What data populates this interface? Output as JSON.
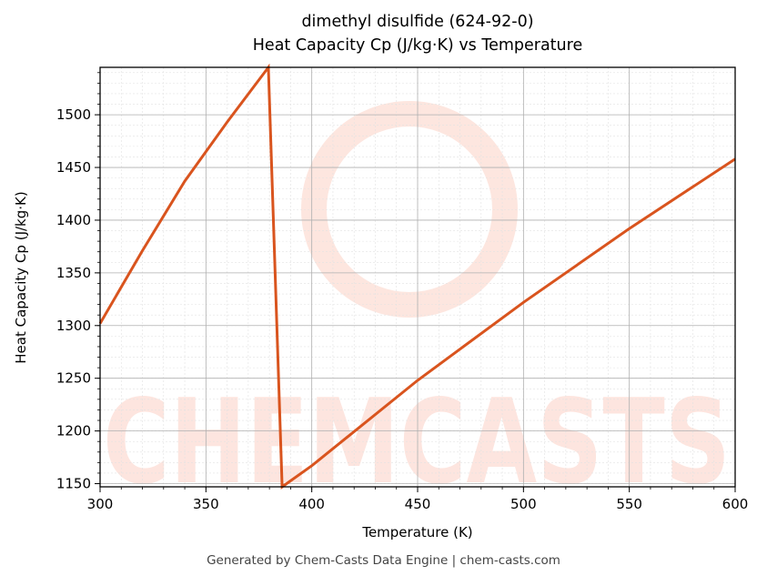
{
  "chart_data": {
    "type": "line",
    "title": "dimethyl disulfide (624-92-0)",
    "subtitle": "Heat Capacity Cp (J/kg·K) vs Temperature",
    "xlabel": "Temperature (K)",
    "ylabel": "Heat Capacity Cp (J/kg·K)",
    "xlim": [
      300,
      600
    ],
    "ylim": [
      1147,
      1545
    ],
    "xticks": [
      300,
      350,
      400,
      450,
      500,
      550,
      600
    ],
    "yticks": [
      1150,
      1200,
      1250,
      1300,
      1350,
      1400,
      1450,
      1500
    ],
    "grid": true,
    "line_color": "#d9541e",
    "series": [
      {
        "name": "Cp",
        "x": [
          300,
          320,
          340,
          360,
          379.5,
          386,
          400,
          450,
          500,
          550,
          600
        ],
        "y": [
          1302,
          1371,
          1437,
          1493,
          1545,
          1147,
          1167,
          1248,
          1322,
          1392,
          1458
        ]
      }
    ],
    "watermark": "CHEMCASTS"
  },
  "footer": "Generated by Chem-Casts Data Engine | chem-casts.com"
}
